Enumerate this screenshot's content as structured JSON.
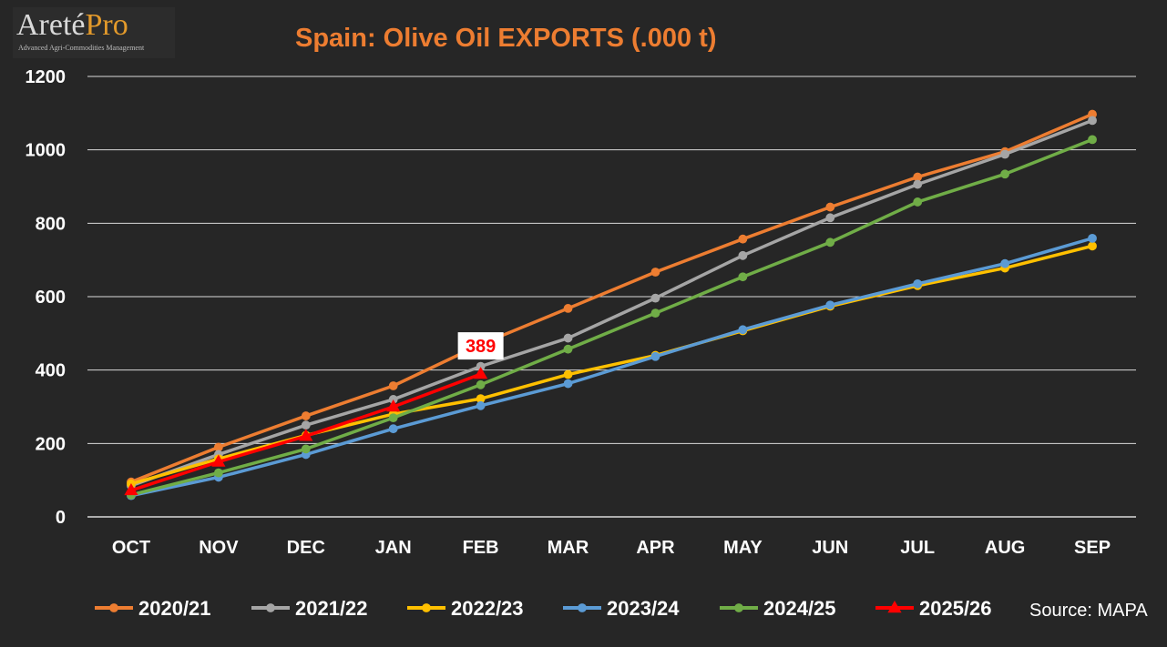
{
  "logo": {
    "word_a": "Areté",
    "word_b": "Pro",
    "tagline": "Advanced Agri-Commodities Management"
  },
  "source": "Source: MAPA",
  "chart_data": {
    "type": "line",
    "title": "Spain: Olive Oil EXPORTS (.000 t)",
    "xlabel": "",
    "ylabel": "",
    "categories": [
      "OCT",
      "NOV",
      "DEC",
      "JAN",
      "FEB",
      "MAR",
      "APR",
      "MAY",
      "JUN",
      "JUL",
      "AUG",
      "SEP"
    ],
    "ylim": [
      0,
      1200
    ],
    "yticks": [
      0,
      200,
      400,
      600,
      800,
      1000,
      1200
    ],
    "grid": true,
    "legend_position": "bottom",
    "series": [
      {
        "name": "2020/21",
        "color": "#ED7D31",
        "marker": "circle",
        "values": [
          95,
          190,
          275,
          357,
          470,
          568,
          667,
          757,
          844,
          926,
          995,
          1097
        ]
      },
      {
        "name": "2021/22",
        "color": "#A5A5A5",
        "marker": "circle",
        "values": [
          85,
          170,
          250,
          320,
          410,
          487,
          596,
          712,
          815,
          906,
          988,
          1080
        ]
      },
      {
        "name": "2022/23",
        "color": "#FFC000",
        "marker": "circle",
        "values": [
          90,
          158,
          222,
          280,
          322,
          388,
          440,
          507,
          574,
          630,
          678,
          738
        ]
      },
      {
        "name": "2023/24",
        "color": "#5B9BD5",
        "marker": "circle",
        "values": [
          58,
          108,
          170,
          240,
          303,
          363,
          437,
          510,
          577,
          635,
          690,
          759
        ]
      },
      {
        "name": "2024/25",
        "color": "#70AD47",
        "marker": "circle",
        "values": [
          60,
          120,
          185,
          270,
          360,
          457,
          555,
          654,
          748,
          858,
          934,
          1028
        ]
      },
      {
        "name": "2025/26",
        "color": "#FF0000",
        "marker": "triangle",
        "values": [
          72,
          150,
          220,
          300,
          389,
          null,
          null,
          null,
          null,
          null,
          null,
          null
        ]
      }
    ],
    "annotations": [
      {
        "series": "2025/26",
        "category": "FEB",
        "text": "389"
      }
    ]
  }
}
